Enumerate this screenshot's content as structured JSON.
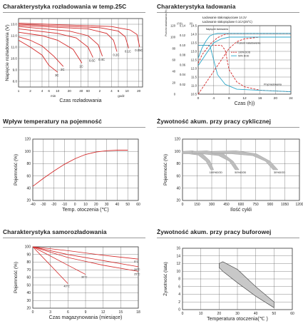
{
  "panels": [
    {
      "id": "discharge",
      "title": "Charakterystyka rozładowania w temp.25C",
      "chart_data": {
        "type": "line",
        "title": "Charakterystyka rozładowania w temp.25C",
        "xlabel": "Czas rozładowania",
        "ylabel": "Napięcie rozładowania (V)",
        "x_scale": "log",
        "x_ticks": [
          "1",
          "2",
          "4",
          "6",
          "10",
          "20",
          "40",
          "60",
          "2",
          "4",
          "6",
          "10",
          "20"
        ],
        "x_unit_labels": [
          "min",
          "godz"
        ],
        "y_ticks": [
          13.0,
          12.0,
          11.0,
          10.0,
          9.0,
          8.0
        ],
        "ylim": [
          7.5,
          13.5
        ],
        "series": [
          {
            "name": "3C",
            "x_min": [
              1,
              2,
              4,
              6,
              10
            ],
            "y": [
              11.6,
              11.0,
              10.3,
              9.4,
              8.8
            ]
          },
          {
            "name": "2C",
            "x_min": [
              1,
              2,
              4,
              8,
              14
            ],
            "y": [
              11.9,
              11.6,
              11.1,
              10.2,
              9.3
            ]
          },
          {
            "name": "1C",
            "x_min": [
              1,
              4,
              10,
              25,
              42
            ],
            "y": [
              12.3,
              12.0,
              11.6,
              10.8,
              9.6
            ]
          },
          {
            "name": "0.6C",
            "x_min": [
              1,
              10,
              30,
              60,
              80
            ],
            "y": [
              12.6,
              12.2,
              11.8,
              11.0,
              10.1
            ]
          },
          {
            "name": "0.4C",
            "x_min": [
              1,
              20,
              60,
              110,
              140
            ],
            "y": [
              12.8,
              12.4,
              12.0,
              11.2,
              10.2
            ]
          },
          {
            "name": "0.2C",
            "x_min": [
              1,
              60,
              180,
              270,
              330
            ],
            "y": [
              12.9,
              12.6,
              12.2,
              11.6,
              10.6
            ]
          },
          {
            "name": "0.1C",
            "x_min": [
              1,
              120,
              360,
              540,
              660
            ],
            "y": [
              13.0,
              12.7,
              12.4,
              11.9,
              10.9
            ]
          },
          {
            "name": "0.05C",
            "x_min": [
              1,
              240,
              720,
              1080,
              1260
            ],
            "y": [
              13.1,
              12.8,
              12.5,
              12.1,
              11.0
            ]
          }
        ]
      }
    },
    {
      "id": "charging",
      "title": "Charakterystyka ładowania",
      "legend_lines": [
        "Ładowanie stałonapięciowe 14.1V",
        "Ładowanie stałoprądowe 0.1CA(25°C)"
      ],
      "in_chart_labels": [
        "Napięcie ładowania",
        "Poziom naładowania",
        "Prąd ładowania"
      ],
      "dash_legend": [
        "100% DOD",
        "50% DOD"
      ],
      "axis_headers": [
        "Poziom naładowania (%)",
        "(CA)",
        "(V)"
      ],
      "chart_data": {
        "type": "line",
        "title": "Charakterystyka ładowania",
        "xlabel": "Czas (h))",
        "x_ticks": [
          0,
          4,
          8,
          12,
          16,
          20,
          24
        ],
        "xlim": [
          0,
          24
        ],
        "volt_ticks": [
          14.5,
          14.0,
          13.5,
          13.0,
          12.5,
          12.0,
          11.5,
          11.0,
          10.5
        ],
        "amp_ticks": [
          "0.14",
          "0.12",
          "0.10",
          "0.08",
          "0.06",
          "0.04",
          "0.02"
        ],
        "pct_ticks": [
          120,
          100,
          80,
          60,
          40,
          20,
          0
        ],
        "series": [
          {
            "name": "Napięcie ładowania (100% DOD)",
            "x": [
              0,
              1,
              2,
              3,
              4,
              5,
              6,
              7,
              8,
              24
            ],
            "y_v": [
              12.3,
              12.8,
              13.1,
              13.4,
              13.6,
              13.8,
              13.9,
              14.0,
              14.05,
              14.05
            ]
          },
          {
            "name": "Napięcie ładowania (50% DOD)",
            "x": [
              0,
              1,
              2,
              3,
              4,
              5,
              24
            ],
            "y_v": [
              12.6,
              13.2,
              13.6,
              13.9,
              14.0,
              14.05,
              14.05
            ]
          },
          {
            "name": "Prąd ładowania (100% DOD)",
            "x": [
              0,
              4,
              6,
              7,
              8,
              10,
              12,
              16,
              24
            ],
            "y_a": [
              0.1,
              0.1,
              0.1,
              0.09,
              0.05,
              0.025,
              0.015,
              0.008,
              0.005
            ]
          },
          {
            "name": "Prąd ładowania (50% DOD)",
            "x": [
              0,
              3,
              4,
              5,
              7,
              10,
              24
            ],
            "y_a": [
              0.1,
              0.1,
              0.07,
              0.04,
              0.02,
              0.01,
              0.005
            ]
          },
          {
            "name": "Poziom naładowania (100% DOD)",
            "x": [
              0,
              4,
              8,
              10,
              12,
              16,
              24
            ],
            "y_pct": [
              0,
              40,
              80,
              92,
              97,
              100,
              100
            ]
          },
          {
            "name": "Poziom naładowania (50% DOD)",
            "x": [
              0,
              2,
              4,
              6,
              8,
              12,
              24
            ],
            "y_pct": [
              50,
              70,
              90,
              97,
              100,
              100,
              100
            ]
          }
        ]
      }
    },
    {
      "id": "temperature",
      "title": "Wpływ temperatury na pojemność",
      "chart_data": {
        "type": "line",
        "title": "Wpływ temperatury na pojemność",
        "xlabel": "Temp. otoczenia (℃)",
        "ylabel": "Pojemność (%)",
        "x_ticks": [
          -40,
          -30,
          -20,
          -10,
          0,
          10,
          20,
          30,
          40,
          50,
          60
        ],
        "y_ticks": [
          120,
          100,
          80,
          60,
          40,
          20
        ],
        "xlim": [
          -40,
          60
        ],
        "ylim": [
          20,
          120
        ],
        "series": [
          {
            "name": "capacity",
            "x": [
              -40,
              -30,
              -20,
              -10,
              0,
              10,
              20,
              25,
              30,
              40,
              50
            ],
            "y": [
              43,
              56,
              68,
              79,
              88,
              95,
              99,
              100,
              101,
              102,
              102
            ]
          }
        ]
      }
    },
    {
      "id": "cyclic",
      "title": "Żywotność akum. przy pracy cyklicznej",
      "chart_data": {
        "type": "area",
        "title": "Żywotność akum. przy pracy cyklicznej",
        "xlabel": "Ilość cykli",
        "ylabel": "Pojemność (%)",
        "x_ticks": [
          0,
          150,
          300,
          450,
          600,
          750,
          900,
          1050,
          1200
        ],
        "y_ticks": [
          120,
          100,
          80,
          60,
          40,
          20
        ],
        "xlim": [
          0,
          1200
        ],
        "ylim": [
          20,
          120
        ],
        "bands": [
          {
            "label": "100%DOD",
            "points": [
              [
                0,
                100
              ],
              [
                100,
                101
              ],
              [
                200,
                97
              ],
              [
                280,
                85
              ],
              [
                320,
                70
              ],
              [
                290,
                70
              ],
              [
                240,
                84
              ],
              [
                160,
                94
              ],
              [
                60,
                96
              ],
              [
                0,
                96
              ]
            ]
          },
          {
            "label": "50%DOD",
            "points": [
              [
                100,
                100
              ],
              [
                250,
                101
              ],
              [
                420,
                96
              ],
              [
                520,
                84
              ],
              [
                580,
                70
              ],
              [
                540,
                70
              ],
              [
                480,
                84
              ],
              [
                370,
                93
              ],
              [
                200,
                96
              ],
              [
                100,
                96
              ]
            ]
          },
          {
            "label": "30%DOD",
            "points": [
              [
                300,
                100
              ],
              [
                550,
                101
              ],
              [
                760,
                96
              ],
              [
                900,
                84
              ],
              [
                980,
                70
              ],
              [
                930,
                70
              ],
              [
                850,
                84
              ],
              [
                720,
                93
              ],
              [
                500,
                96
              ],
              [
                300,
                96
              ]
            ]
          }
        ]
      }
    },
    {
      "id": "selfdischarge",
      "title": "Charakterystyka samorozładowania",
      "chart_data": {
        "type": "line",
        "title": "Charakterystyka samorozładowania",
        "xlabel": "Czas magazynowania (miesiące)",
        "ylabel": "Pojemność (%)",
        "x_ticks": [
          0,
          3,
          6,
          9,
          12,
          15,
          18
        ],
        "y_ticks": [
          100,
          90,
          80,
          70,
          60,
          50,
          40,
          30,
          20
        ],
        "xlim": [
          0,
          18
        ],
        "ylim": [
          20,
          100
        ],
        "series": [
          {
            "name": "40°C",
            "x": [
              0,
              2,
              4,
              6
            ],
            "y": [
              100,
              84,
              68,
              52
            ]
          },
          {
            "name": "30°C",
            "x": [
              0,
              3,
              6,
              9
            ],
            "y": [
              100,
              88,
              76,
              64
            ]
          },
          {
            "name": "25°C",
            "x": [
              0,
              6,
              12,
              18
            ],
            "y": [
              100,
              86,
              76,
              68
            ]
          },
          {
            "name": "20°C",
            "x": [
              0,
              6,
              12,
              18
            ],
            "y": [
              100,
              90,
              82,
              74
            ]
          },
          {
            "name": "5°C",
            "x": [
              0,
              6,
              12,
              18
            ],
            "y": [
              100,
              95,
              89,
              84
            ]
          }
        ]
      }
    },
    {
      "id": "float",
      "title": "Żywotność akum. przy pracy buforowej",
      "chart_data": {
        "type": "area",
        "title": "Żywotność akum. przy pracy buforowej",
        "xlabel": "Temperatura otoczenia(℃ )",
        "ylabel": "Żywotność (lata)",
        "x_ticks": [
          0,
          10,
          20,
          30,
          40,
          50,
          60
        ],
        "y_ticks": [
          16,
          14,
          12,
          10,
          8,
          6,
          4,
          2,
          0
        ],
        "xlim": [
          0,
          60
        ],
        "ylim": [
          0,
          16
        ],
        "bands": [
          {
            "label": "",
            "points": [
              [
                20,
                12
              ],
              [
                22,
                12.5
              ],
              [
                30,
                10.5
              ],
              [
                40,
                6
              ],
              [
                50,
                2
              ],
              [
                50,
                0.5
              ],
              [
                40,
                3.5
              ],
              [
                30,
                7
              ],
              [
                22,
                10
              ],
              [
                20,
                11
              ]
            ]
          }
        ]
      }
    }
  ]
}
